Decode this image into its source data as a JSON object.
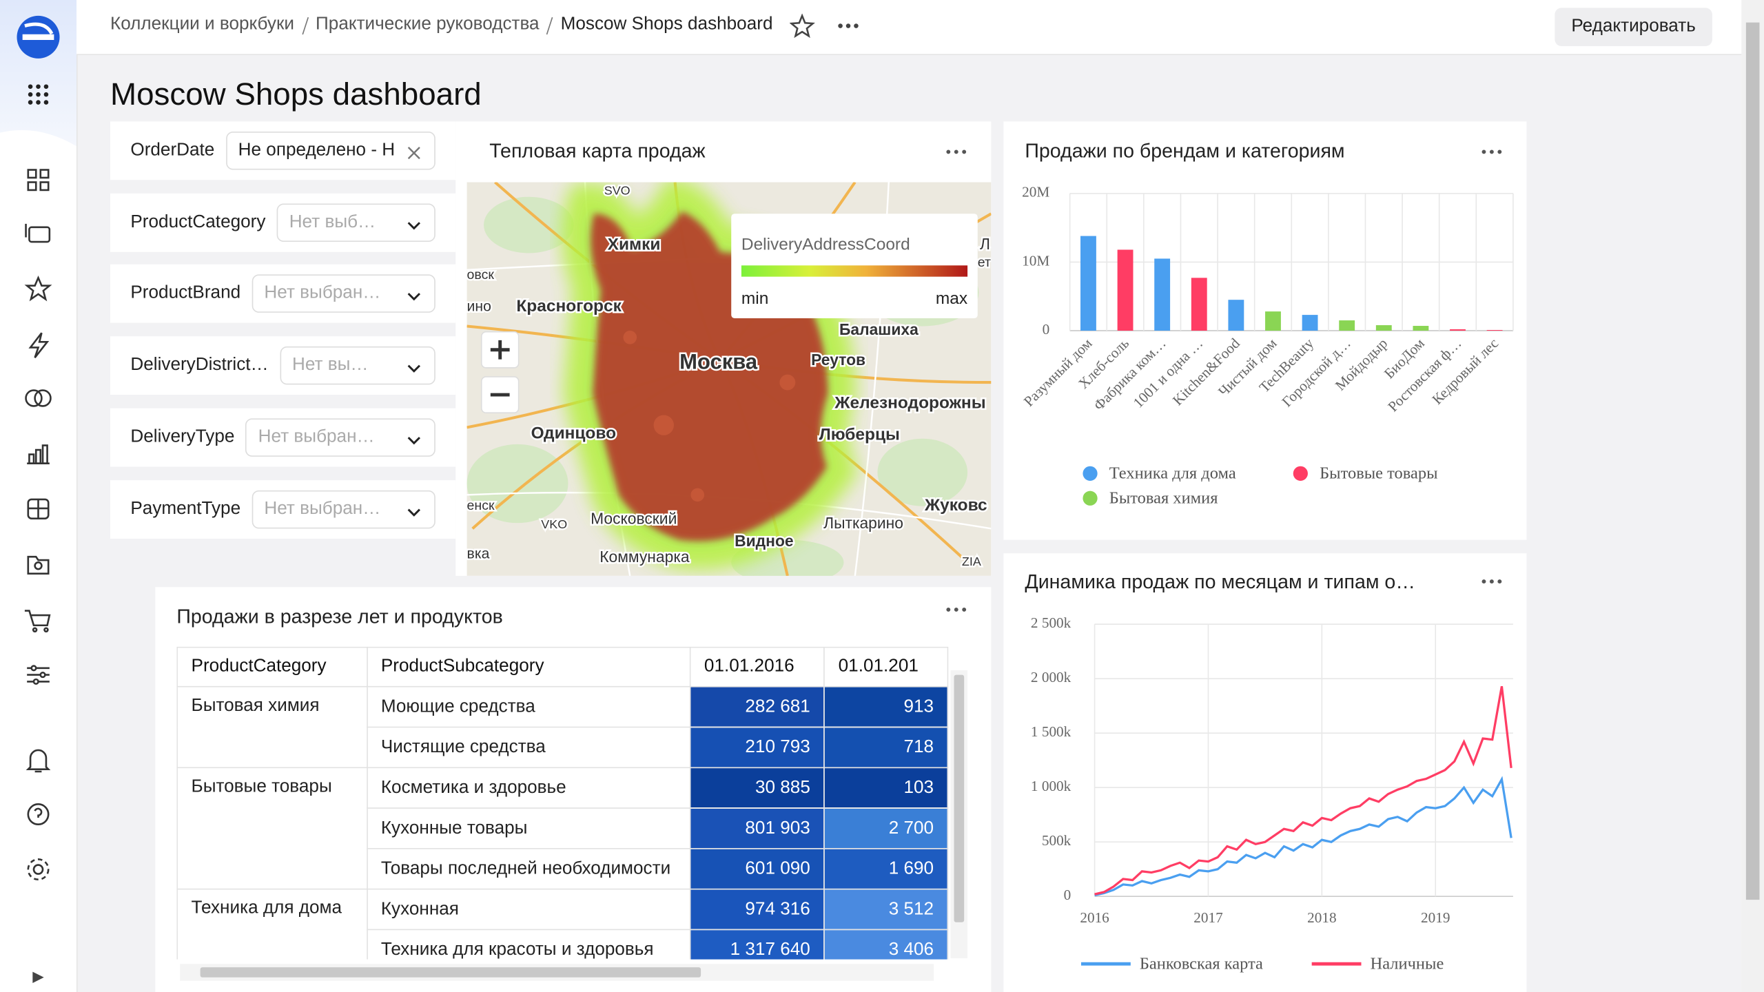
{
  "header": {
    "breadcrumbs": [
      "Коллекции и воркбуки",
      "Практические руководства",
      "Moscow Shops dashboard"
    ],
    "edit_button": "Редактировать"
  },
  "title": "Moscow Shops dashboard",
  "filters": [
    {
      "label": "OrderDate",
      "value": "Не определено - Н"
    },
    {
      "label": "ProductCategory",
      "value": "Нет выб…"
    },
    {
      "label": "ProductBrand",
      "value": "Нет выбран…"
    },
    {
      "label": "DeliveryDistrict…",
      "value": "Нет вы…"
    },
    {
      "label": "DeliveryType",
      "value": "Нет выбран…"
    },
    {
      "label": "PaymentType",
      "value": "Нет выбран…"
    }
  ],
  "heatmap": {
    "title": "Тепловая карта продаж",
    "legend_title": "DeliveryAddressCoord",
    "legend_min": "min",
    "legend_max": "max",
    "places": [
      "SVO",
      "Химки",
      "Красногорск",
      "Москва",
      "Реутов",
      "Балашиха",
      "Железнодорожны",
      "Одинцово",
      "Люберцы",
      "Московский",
      "Лыткарино",
      "Жуковс",
      "Видное",
      "Коммунарка",
      "VKO",
      "ZIA",
      "овск",
      "ино",
      "енск",
      "вка",
      "Л",
      "ет"
    ]
  },
  "chart_data": [
    {
      "type": "bar",
      "title": "Продажи по брендам и категориям",
      "categories": [
        "Разумный дом",
        "Хлеб-соль",
        "Фабрика ком…",
        "1001 и одна …",
        "Kitchen&Food",
        "Чистый дом",
        "TechBeauty",
        "Городской д…",
        "Мойдодыр",
        "БиоДом",
        "Ростовская ф…",
        "Кедровый лес"
      ],
      "series": [
        {
          "name": "Техника для дома",
          "color": "#4a9ff0",
          "values": [
            13800000,
            null,
            10500000,
            null,
            4500000,
            null,
            2300000,
            null,
            null,
            null,
            null,
            null
          ]
        },
        {
          "name": "Бытовые товары",
          "color": "#ff3d64",
          "values": [
            null,
            11800000,
            null,
            7700000,
            null,
            null,
            null,
            null,
            null,
            null,
            200000,
            100000
          ]
        },
        {
          "name": "Бытовая химия",
          "color": "#8ad554",
          "values": [
            null,
            null,
            null,
            null,
            null,
            2800000,
            null,
            1500000,
            800000,
            700000,
            null,
            null
          ]
        }
      ],
      "ylim": [
        0,
        20000000
      ],
      "yticks": [
        0,
        {
          "value": 10000000,
          "label": "10M"
        },
        {
          "value": 20000000,
          "label": "20M"
        }
      ],
      "grid": true
    },
    {
      "type": "line",
      "title": "Динамика продаж по месяцам и типам о…",
      "x": [
        "2016-01",
        "2016-02",
        "2016-03",
        "2016-04",
        "2016-05",
        "2016-06",
        "2016-07",
        "2016-08",
        "2016-09",
        "2016-10",
        "2016-11",
        "2016-12",
        "2017-01",
        "2017-02",
        "2017-03",
        "2017-04",
        "2017-05",
        "2017-06",
        "2017-07",
        "2017-08",
        "2017-09",
        "2017-10",
        "2017-11",
        "2017-12",
        "2018-01",
        "2018-02",
        "2018-03",
        "2018-04",
        "2018-05",
        "2018-06",
        "2018-07",
        "2018-08",
        "2018-09",
        "2018-10",
        "2018-11",
        "2018-12",
        "2019-01",
        "2019-02",
        "2019-03",
        "2019-04",
        "2019-05",
        "2019-06",
        "2019-07",
        "2019-08",
        "2019-09"
      ],
      "series": [
        {
          "name": "Банковская карта",
          "color": "#4a9ff0",
          "values": [
            10000,
            30000,
            60000,
            110000,
            100000,
            140000,
            120000,
            150000,
            170000,
            200000,
            180000,
            240000,
            230000,
            250000,
            320000,
            310000,
            380000,
            350000,
            400000,
            360000,
            460000,
            420000,
            480000,
            450000,
            520000,
            500000,
            560000,
            600000,
            620000,
            660000,
            640000,
            710000,
            730000,
            690000,
            770000,
            820000,
            810000,
            830000,
            900000,
            1000000,
            860000,
            980000,
            920000,
            1075000,
            537000
          ]
        },
        {
          "name": "Наличные",
          "color": "#ff3d64",
          "values": [
            20000,
            40000,
            90000,
            160000,
            150000,
            230000,
            220000,
            240000,
            280000,
            310000,
            260000,
            330000,
            320000,
            360000,
            460000,
            430000,
            520000,
            480000,
            500000,
            560000,
            620000,
            600000,
            680000,
            650000,
            720000,
            700000,
            760000,
            810000,
            830000,
            900000,
            870000,
            940000,
            980000,
            1010000,
            1060000,
            1080000,
            1120000,
            1160000,
            1240000,
            1420000,
            1220000,
            1450000,
            1440000,
            1930000,
            1180000
          ]
        }
      ],
      "xticks": [
        {
          "value": "2016-01",
          "label": "2016"
        },
        {
          "value": "2017-01",
          "label": "2017"
        },
        {
          "value": "2018-01",
          "label": "2018"
        },
        {
          "value": "2019-01",
          "label": "2019"
        }
      ],
      "ylim": [
        0,
        2500000
      ],
      "yticks": [
        0,
        {
          "value": 500000,
          "label": "500k"
        },
        {
          "value": 1000000,
          "label": "1 000k"
        },
        {
          "value": 1500000,
          "label": "1 500k"
        },
        {
          "value": 2000000,
          "label": "2 000k"
        },
        {
          "value": 2500000,
          "label": "2 500k"
        }
      ],
      "grid": true
    }
  ],
  "table": {
    "title": "Продажи в разрезе лет и продуктов",
    "columns": [
      "ProductCategory",
      "ProductSubcategory",
      "01.01.2016",
      "01.01.201"
    ],
    "groups": [
      {
        "category": "Бытовая химия",
        "rows": [
          [
            "Моющие средства",
            "282 681",
            "913"
          ],
          [
            "Чистящие средства",
            "210 793",
            "718"
          ]
        ]
      },
      {
        "category": "Бытовые товары",
        "rows": [
          [
            "Косметика и здоровье",
            "30 885",
            "103"
          ],
          [
            "Кухонные товары",
            "801 903",
            "2 700"
          ],
          [
            "Товары последней необходимости",
            "601 090",
            "1 690"
          ]
        ]
      },
      {
        "category": "Техника для дома",
        "rows": [
          [
            "Кухонная",
            "974 316",
            "3 512"
          ],
          [
            "Техника для красоты и здоровья",
            "1 317 640",
            "3 406"
          ]
        ]
      }
    ],
    "cell_colors": [
      [
        [
          "#1549aa",
          "#0d45a2"
        ],
        [
          "#1650b3",
          "#1450b0"
        ]
      ],
      [
        [
          "#0b3f9b",
          "#0b3f9b"
        ],
        [
          "#1a52b6",
          "#3a7fd6"
        ],
        [
          "#1752b5",
          "#1e5cc0"
        ]
      ],
      [
        [
          "#1a55bb",
          "#4a8ae0"
        ],
        [
          "#1e5cc2",
          "#4a8ae0"
        ]
      ]
    ]
  }
}
